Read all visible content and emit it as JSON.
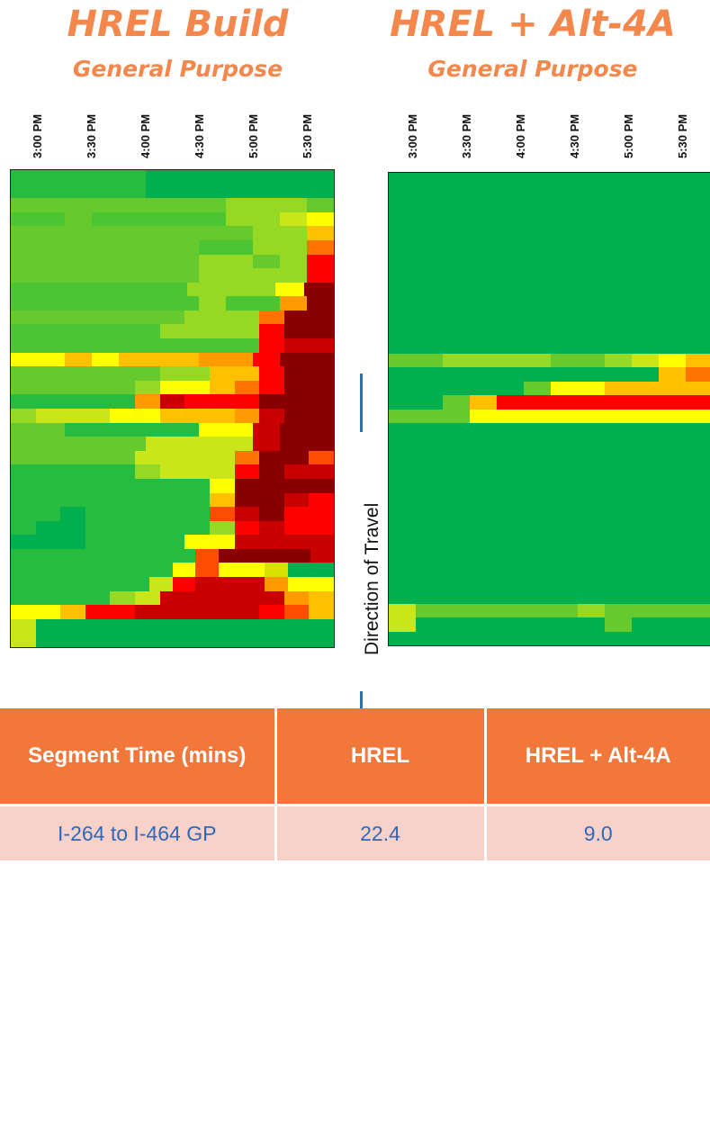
{
  "chart_data": [
    {
      "type": "heatmap",
      "title": "HREL Build",
      "subtitle": "General Purpose",
      "x_tick_labels": [
        "3:00 PM",
        "3:30 PM",
        "4:00 PM",
        "4:30 PM",
        "5:00 PM",
        "5:30 PM"
      ],
      "rows": [
        "ggggghhhhhhh",
        "ggggghhhhhhh",
        "ffffffffiiif",
        "eefeeeeeiijw",
        "fffffffffiiv",
        "fffffffeeiit",
        "fffffffiifir",
        "fffffffiiiir",
        "eeeeeeiiiwz",
        "eeeeeeeieeuz",
        "fffffffiiitzz",
        "eeeeeeiiiirzz",
        "eeeeeeeeeeryy",
        "wwvwvvvuurzz",
        "ffffffiivvrzz",
        "fffffiwwvtrzz",
        "ggggguyrrrzzz",
        "ijjjwwvvvuyzz",
        "ffgggggwwyzz",
        "fffffjjjjyzz",
        "fffffjjjjtzzs",
        "gggggijjjrzyy",
        "ggggggggwzzzz",
        "ggggggggvzzyr",
        "gghgggggsyzrr",
        "ghhgggggiryrr",
        "hhhggggwwyyyy",
        "ggggggggszzzzy",
        "gggggggwswwxhh",
        "ggggggjryyyuww",
        "ggggijyyyyyuv",
        "wwvrryyyyyrsv",
        "jhhhhhhhhhhhh",
        "jhhhhhhhhhhhh"
      ]
    },
    {
      "type": "heatmap",
      "title": "HREL + Alt-4A",
      "subtitle": "General Purpose",
      "x_tick_labels": [
        "3:00 PM",
        "3:30 PM",
        "4:00 PM",
        "4:30 PM",
        "5:00 PM",
        "5:30 PM"
      ],
      "rows": [
        "hhhhhhhhhhhh",
        "hhhhhhhhhhhh",
        "hhhhhhhhhhhh",
        "hhhhhhhhhhhh",
        "hhhhhhhhhhhh",
        "hhhhhhhhhhhh",
        "hhhhhhhhhhhh",
        "hhhhhhhhhhhh",
        "hhhhhhhhhhhh",
        "hhhhhhhhhhhh",
        "hhhhhhhhhhhh",
        "hhhhhhhhhhhh",
        "hhhhhhhhhhhh",
        "ffiiiiffijwv",
        "hhhhhhhhhhvt",
        "hhhhhfwwvvvv",
        "hhfvrrrrrrrr",
        "fffwwwwwwwww",
        "hhhhhhhhhhhh",
        "hhhhhhhhhhhh",
        "hhhhhhhhhhhh",
        "hhhhhhhhhhhh",
        "hhhhhhhhhhhh",
        "hhhhhhhhhhhh",
        "hhhhhhhhhhhh",
        "hhhhhhhhhhhh",
        "hhhhhhhhhhhh",
        "hhhhhhhhhhhh",
        "hhhhhhhhhhhh",
        "hhhhhhhhhhhh",
        "hhhhhhhhhhhh",
        "jffffffiffff",
        "jhhhhhhhfhhh",
        "hhhhhhhhhhhh"
      ]
    }
  ],
  "direction_label": "Direction of Travel",
  "table": {
    "headers": [
      "Segment Time (mins)",
      "HREL",
      "HREL + Alt-4A"
    ],
    "row": [
      "I-264 to I-464 GP",
      "22.4",
      "9.0"
    ]
  },
  "colors": {
    "title": "#f4874b",
    "table_header": "#f2773a",
    "table_row": "#f8d2c8",
    "table_text": "#2f68b8",
    "arrow": "#2e6fb5",
    "cell_scale": {
      "h": "#00b04f",
      "g": "#27bb3f",
      "e": "#4cc533",
      "f": "#66c92e",
      "i": "#96d924",
      "j": "#c8e61a",
      "w": "#ffff00",
      "v": "#ffc000",
      "u": "#ff9a00",
      "t": "#ff7300",
      "s": "#ff4c00",
      "r": "#ff0000",
      "y": "#c80000",
      "z": "#8a0000",
      "x": "#d8e000"
    }
  }
}
